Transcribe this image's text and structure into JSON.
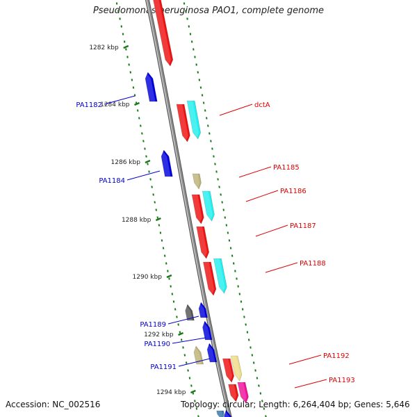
{
  "title": "Pseudomonas aeruginosa PAO1, complete genome",
  "footer": {
    "accession": "Accession: NC_002516",
    "summary": "Topology: circular; Length: 6,264,404 bp; Genes: 5,646"
  },
  "colors": {
    "backbone": "#8a8a8a",
    "tick": "#1a7a1a",
    "tick_label": "#222222",
    "label_forward": "#dd0000",
    "label_reverse": "#0000cc",
    "gene_red": "#ee1111",
    "gene_cyan": "#22eeee",
    "gene_blue": "#0000dd",
    "gene_olive": "#bcb277",
    "gene_khaki": "#eedd88",
    "gene_gray": "#555555",
    "gene_magenta": "#ee1199",
    "gene_steel": "#3377aa"
  },
  "ruler": {
    "unit": "kbp",
    "labels": [
      "1282 kbp",
      "1284 kbp",
      "1286 kbp",
      "1288 kbp",
      "1290 kbp",
      "1292 kbp",
      "1294 kbp"
    ]
  },
  "genes_forward": [
    {
      "label": "",
      "color": "gene_red"
    },
    {
      "label": "dctA",
      "color": "gene_red"
    },
    {
      "label": "",
      "color": "gene_cyan"
    },
    {
      "label": "PA1185",
      "color": "gene_olive"
    },
    {
      "label": "PA1186",
      "color": "gene_red"
    },
    {
      "label": "",
      "color": "gene_cyan"
    },
    {
      "label": "PA1187",
      "color": "gene_red"
    },
    {
      "label": "PA1188",
      "color": "gene_red"
    },
    {
      "label": "",
      "color": "gene_cyan"
    },
    {
      "label": "PA1192",
      "color": "gene_red"
    },
    {
      "label": "",
      "color": "gene_khaki"
    },
    {
      "label": "PA1193",
      "color": "gene_red"
    },
    {
      "label": "",
      "color": "gene_magenta"
    },
    {
      "label": "",
      "color": "gene_steel"
    }
  ],
  "genes_reverse": [
    {
      "label": "PA1182",
      "color": "gene_blue"
    },
    {
      "label": "PA1184",
      "color": "gene_blue"
    },
    {
      "label": "PA1189",
      "color": "gene_gray"
    },
    {
      "label": "",
      "color": "gene_blue"
    },
    {
      "label": "PA1190",
      "color": "gene_blue"
    },
    {
      "label": "PA1191",
      "color": "gene_olive"
    },
    {
      "label": "",
      "color": "gene_blue"
    },
    {
      "label": "",
      "color": "gene_blue"
    }
  ]
}
